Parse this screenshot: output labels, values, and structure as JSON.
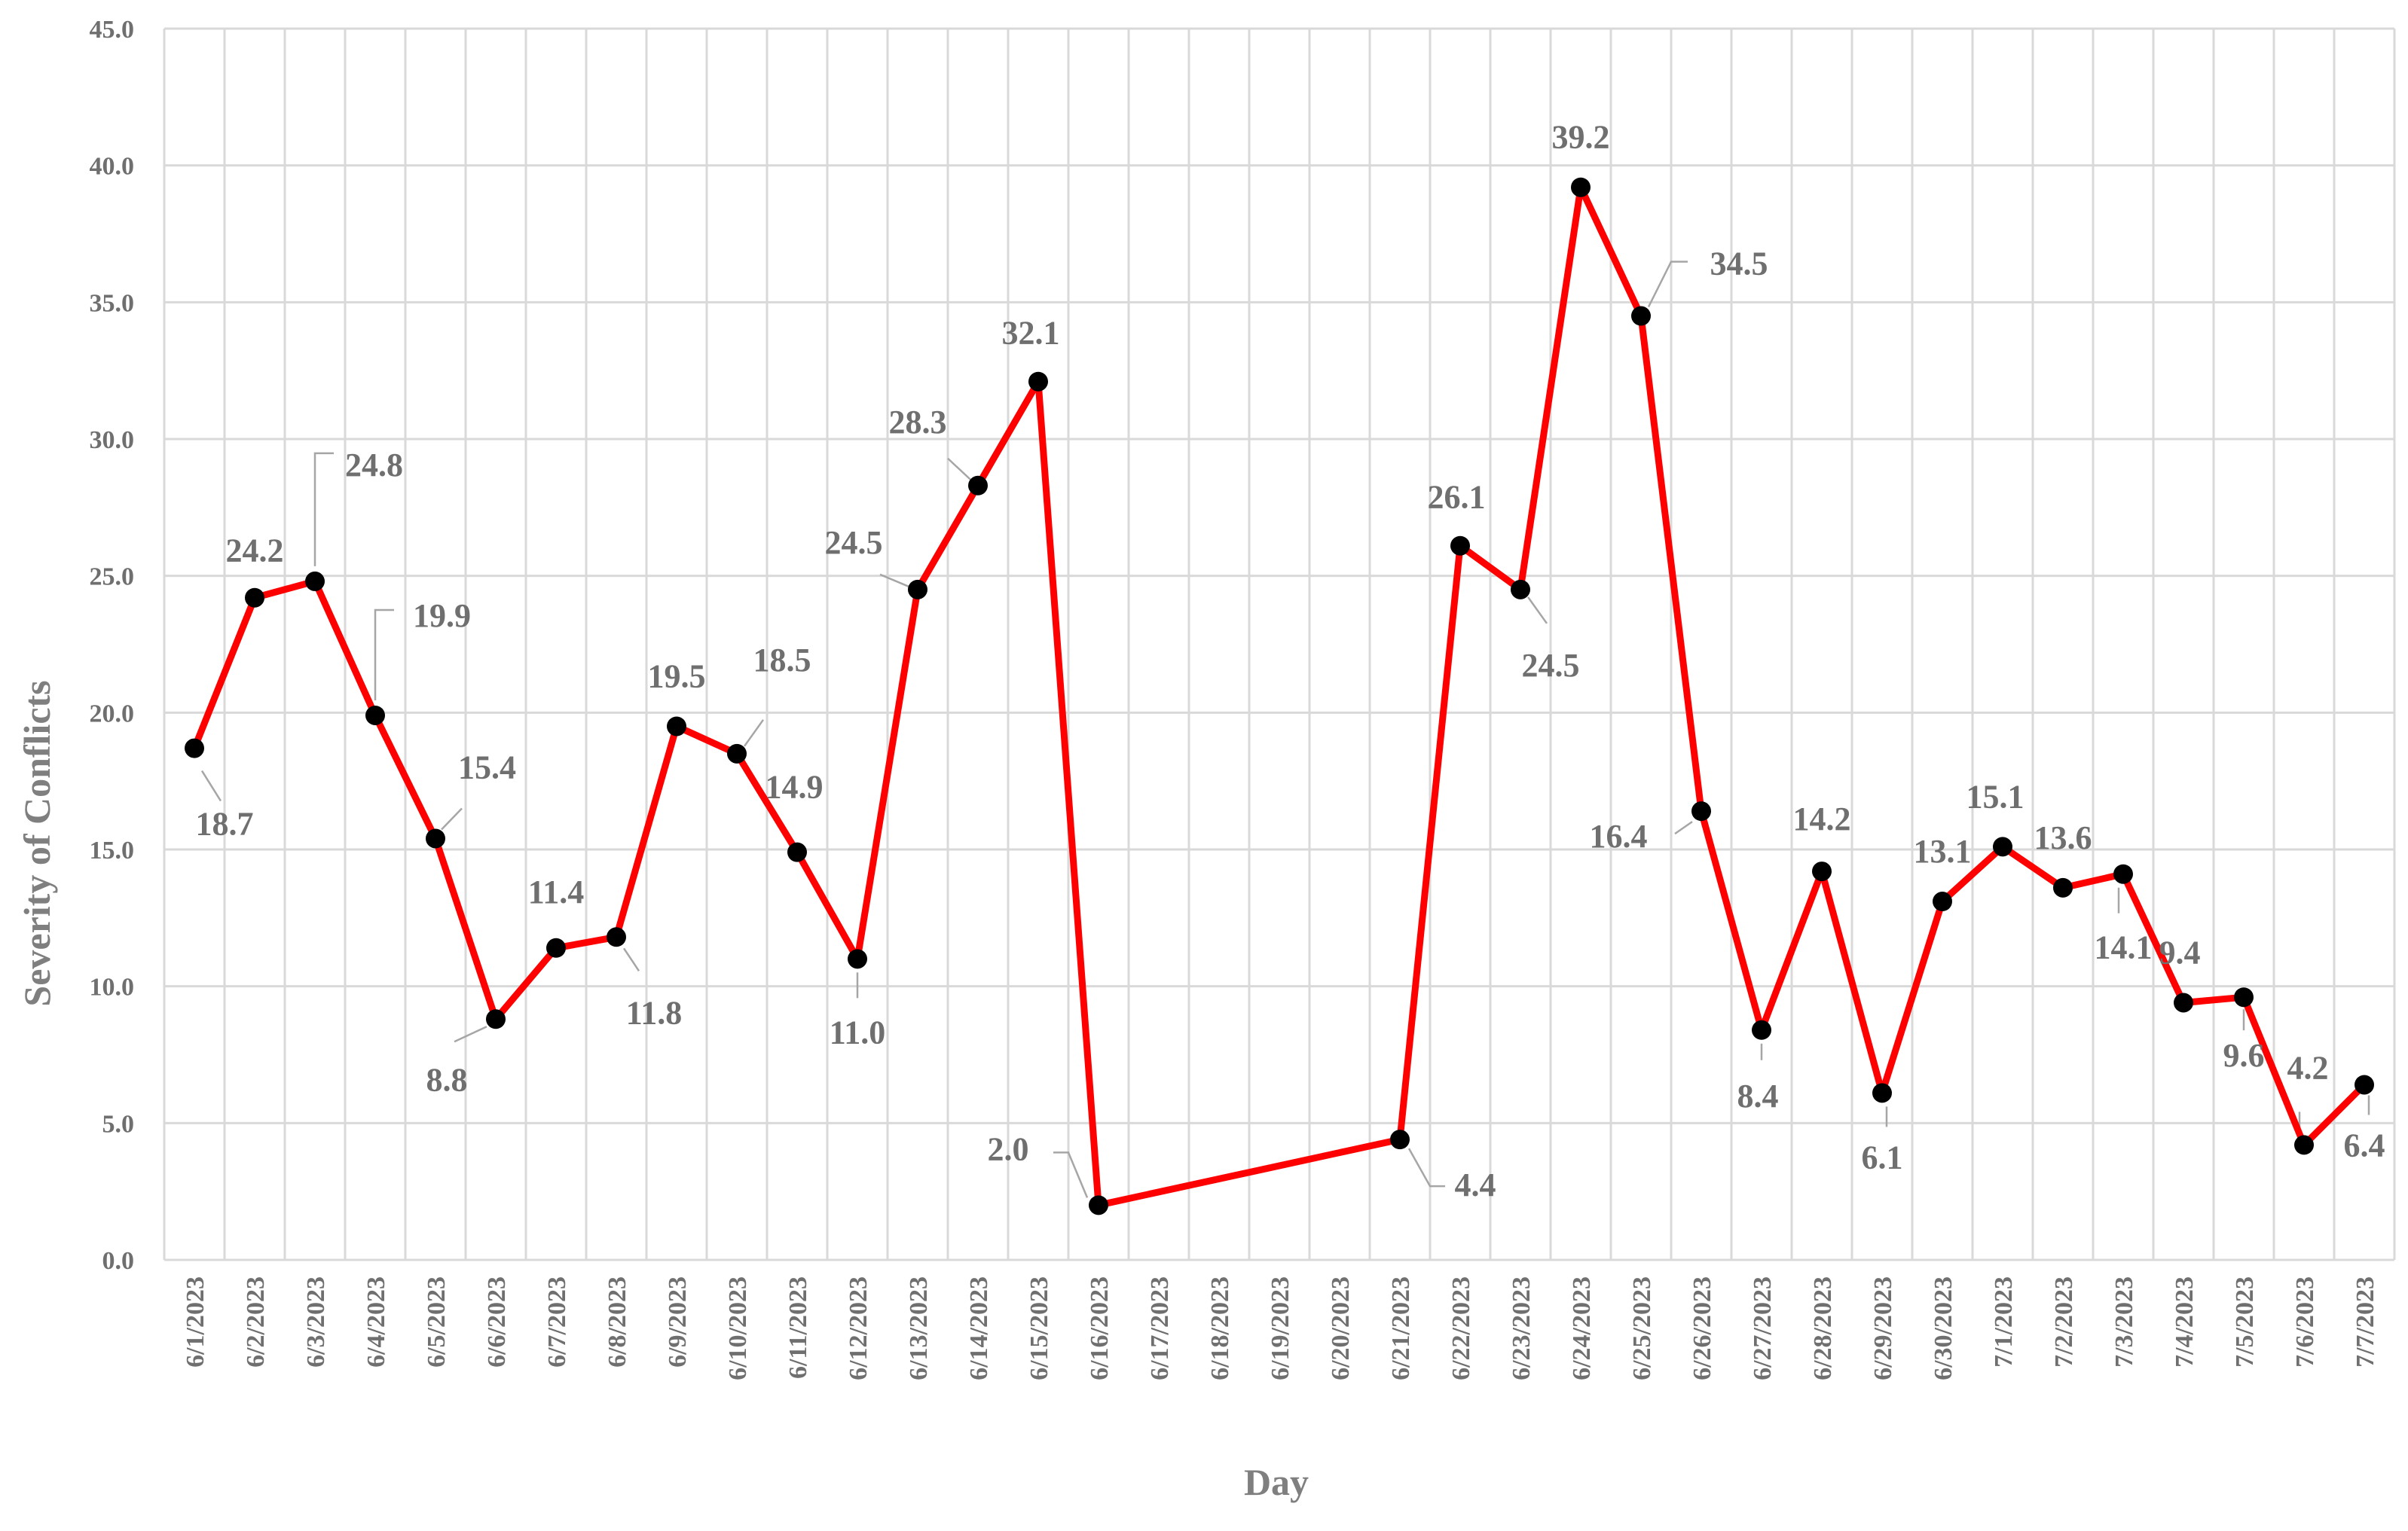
{
  "chart_data": {
    "type": "line",
    "title": "",
    "xlabel": "Day",
    "ylabel": "Severity of Conflicts",
    "ylim": [
      0,
      45
    ],
    "y_ticks": [
      "0.0",
      "5.0",
      "10.0",
      "15.0",
      "20.0",
      "25.0",
      "30.0",
      "35.0",
      "40.0",
      "45.0"
    ],
    "grid": true,
    "legend": "none",
    "categories": [
      "6/1/2023",
      "6/2/2023",
      "6/3/2023",
      "6/4/2023",
      "6/5/2023",
      "6/6/2023",
      "6/7/2023",
      "6/8/2023",
      "6/9/2023",
      "6/10/2023",
      "6/11/2023",
      "6/12/2023",
      "6/13/2023",
      "6/14/2023",
      "6/15/2023",
      "6/16/2023",
      "6/17/2023",
      "6/18/2023",
      "6/19/2023",
      "6/20/2023",
      "6/21/2023",
      "6/22/2023",
      "6/23/2023",
      "6/24/2023",
      "6/25/2023",
      "6/26/2023",
      "6/27/2023",
      "6/28/2023",
      "6/29/2023",
      "6/30/2023",
      "7/1/2023",
      "7/2/2023",
      "7/3/2023",
      "7/4/2023",
      "7/5/2023",
      "7/6/2023",
      "7/7/2023"
    ],
    "series": [
      {
        "color": "#ff0000",
        "marker_color": "#000000",
        "points": [
          {
            "x": "6/1/2023",
            "y": 18.7,
            "label": "18.7"
          },
          {
            "x": "6/2/2023",
            "y": 24.2,
            "label": "24.2"
          },
          {
            "x": "6/3/2023",
            "y": 24.8,
            "label": "24.8"
          },
          {
            "x": "6/4/2023",
            "y": 19.9,
            "label": "19.9"
          },
          {
            "x": "6/5/2023",
            "y": 15.4,
            "label": "15.4"
          },
          {
            "x": "6/6/2023",
            "y": 8.8,
            "label": "8.8"
          },
          {
            "x": "6/7/2023",
            "y": 11.4,
            "label": "11.4"
          },
          {
            "x": "6/8/2023",
            "y": 11.8,
            "label": "11.8"
          },
          {
            "x": "6/9/2023",
            "y": 19.5,
            "label": "19.5"
          },
          {
            "x": "6/10/2023",
            "y": 18.5,
            "label": "18.5"
          },
          {
            "x": "6/11/2023",
            "y": 14.9,
            "label": "14.9"
          },
          {
            "x": "6/12/2023",
            "y": 11.0,
            "label": "11.0"
          },
          {
            "x": "6/13/2023",
            "y": 24.5,
            "label": "24.5"
          },
          {
            "x": "6/14/2023",
            "y": 28.3,
            "label": "28.3"
          },
          {
            "x": "6/15/2023",
            "y": 32.1,
            "label": "32.1"
          },
          {
            "x": "6/16/2023",
            "y": 2.0,
            "label": "2.0"
          },
          {
            "x": "6/21/2023",
            "y": 4.4,
            "label": "4.4"
          },
          {
            "x": "6/22/2023",
            "y": 26.1,
            "label": "26.1"
          },
          {
            "x": "6/23/2023",
            "y": 24.5,
            "label": "24.5"
          },
          {
            "x": "6/24/2023",
            "y": 39.2,
            "label": "39.2"
          },
          {
            "x": "6/25/2023",
            "y": 34.5,
            "label": "34.5"
          },
          {
            "x": "6/26/2023",
            "y": 16.4,
            "label": "16.4"
          },
          {
            "x": "6/27/2023",
            "y": 8.4,
            "label": "8.4"
          },
          {
            "x": "6/28/2023",
            "y": 14.2,
            "label": "14.2"
          },
          {
            "x": "6/29/2023",
            "y": 6.1,
            "label": "6.1"
          },
          {
            "x": "6/30/2023",
            "y": 13.1,
            "label": "13.1"
          },
          {
            "x": "7/1/2023",
            "y": 15.1,
            "label": "15.1"
          },
          {
            "x": "7/2/2023",
            "y": 13.6,
            "label": "13.6"
          },
          {
            "x": "7/3/2023",
            "y": 14.1,
            "label": "14.1"
          },
          {
            "x": "7/4/2023",
            "y": 9.4,
            "label": "9.4"
          },
          {
            "x": "7/5/2023",
            "y": 9.6,
            "label": "9.6"
          },
          {
            "x": "7/6/2023",
            "y": 4.2,
            "label": "4.2"
          },
          {
            "x": "7/7/2023",
            "y": 6.4,
            "label": "6.4"
          }
        ]
      }
    ]
  }
}
